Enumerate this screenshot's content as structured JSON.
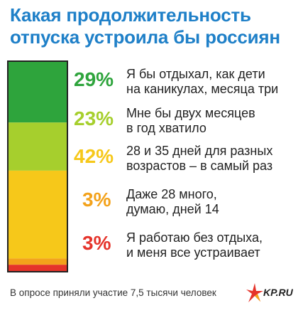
{
  "title": "Какая продолжительность отпуска устроила бы россиян",
  "footer": "В опросе приняли участие 7,5 тысячи человек",
  "logo": {
    "text": "KP.RU",
    "icon": "kp-star-icon"
  },
  "colors": {
    "title": "#1f80c8",
    "green": "#2ea43c",
    "lightgreen": "#a6cf2d",
    "yellow": "#f6c81a",
    "orange": "#f3a21b",
    "red": "#e5332a"
  },
  "chart_data": {
    "type": "bar",
    "title": "Какая продолжительность отпуска устроила бы россиян",
    "xlabel": "",
    "ylabel": "",
    "categories": [
      "Я бы отдыхал, как дети на каникулах, месяца три",
      "Мне бы двух месяцев в год хватило",
      "28 и 35 дней для разных возрастов – в самый раз",
      "Даже 28 много, думаю, дней 14",
      "Я работаю без отдыха, и меня все устраивает"
    ],
    "values": [
      29,
      23,
      42,
      3,
      3
    ],
    "value_labels": [
      "29%",
      "23%",
      "42%",
      "3%",
      "3%"
    ],
    "colors": [
      "#2ea43c",
      "#a6cf2d",
      "#f6c81a",
      "#f3a21b",
      "#e5332a"
    ],
    "unit": "%",
    "stacked": true,
    "legend": "none",
    "grid": false
  }
}
